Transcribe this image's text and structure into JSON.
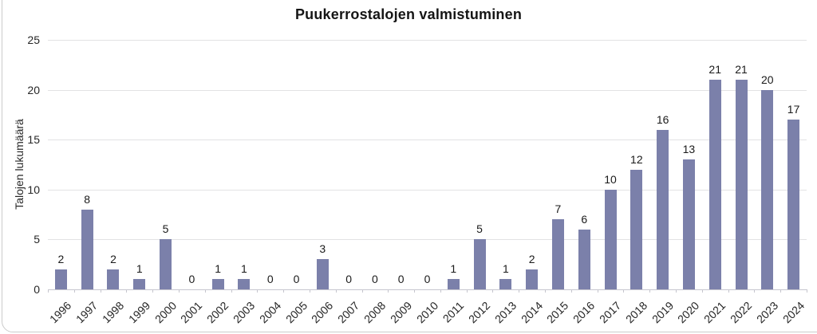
{
  "chart_data": {
    "type": "bar",
    "title": "Puukerrostalojen valmistuminen",
    "xlabel": "",
    "ylabel": "Talojen lukumäärä",
    "categories": [
      "1996",
      "1997",
      "1998",
      "1999",
      "2000",
      "2001",
      "2002",
      "2003",
      "2004",
      "2005",
      "2006",
      "2007",
      "2008",
      "2009",
      "2010",
      "2011",
      "2012",
      "2013",
      "2014",
      "2015",
      "2016",
      "2017",
      "2018",
      "2019",
      "2020",
      "2021",
      "2022",
      "2023",
      "2024"
    ],
    "values": [
      2,
      8,
      2,
      1,
      5,
      0,
      1,
      1,
      0,
      0,
      3,
      0,
      0,
      0,
      0,
      1,
      5,
      1,
      2,
      7,
      6,
      10,
      12,
      16,
      13,
      21,
      21,
      20,
      17
    ],
    "ylim": [
      0,
      25
    ],
    "yticks": [
      0,
      5,
      10,
      15,
      20,
      25
    ],
    "grid": "horizontal",
    "legend": "none",
    "value_labels_shown": true,
    "bar_color": "#7b80aa",
    "gridline_color": "#e2e2e4",
    "axis_line_color": "#c6c6ce",
    "text_color": "#262626",
    "frame_border_color": "#cbcbcb"
  }
}
